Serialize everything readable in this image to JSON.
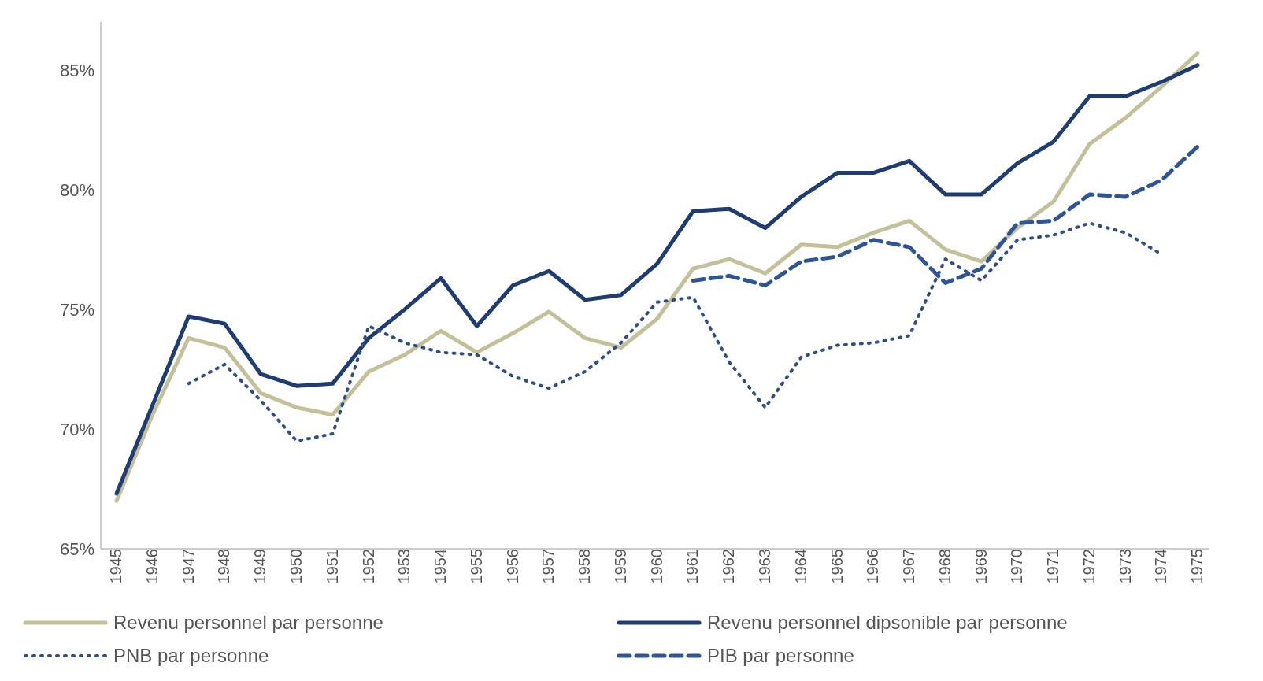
{
  "chart_data": {
    "type": "line",
    "categories": [
      "1945",
      "1946",
      "1947",
      "1948",
      "1949",
      "1950",
      "1951",
      "1952",
      "1953",
      "1954",
      "1955",
      "1956",
      "1957",
      "1958",
      "1959",
      "1960",
      "1961",
      "1962",
      "1963",
      "1964",
      "1965",
      "1966",
      "1967",
      "1968",
      "1969",
      "1970",
      "1971",
      "1972",
      "1973",
      "1974",
      "1975"
    ],
    "series": [
      {
        "name": "Revenu personnel par personne",
        "color": "#c4c19a",
        "line_style": "solid",
        "values": [
          67.0,
          70.6,
          73.8,
          73.4,
          71.5,
          70.9,
          70.6,
          72.4,
          73.1,
          74.1,
          73.2,
          74.0,
          74.9,
          73.8,
          73.4,
          74.6,
          76.7,
          77.1,
          76.5,
          77.7,
          77.6,
          78.2,
          78.7,
          77.5,
          77.0,
          78.4,
          79.5,
          81.9,
          83.0,
          84.3,
          85.7
        ]
      },
      {
        "name": "Revenu personnel dipsonible par personne",
        "color": "#1f3c73",
        "line_style": "solid",
        "values": [
          67.3,
          71.0,
          74.7,
          74.4,
          72.3,
          71.8,
          71.9,
          73.8,
          75.0,
          76.3,
          74.3,
          76.0,
          76.6,
          75.4,
          75.6,
          76.9,
          79.1,
          79.2,
          78.4,
          79.7,
          80.7,
          80.7,
          81.2,
          79.8,
          79.8,
          81.1,
          82.0,
          83.9,
          83.9,
          84.5,
          85.2
        ]
      },
      {
        "name": "PNB par personne",
        "color": "#2f4f85",
        "line_style": "dotted",
        "values": [
          null,
          null,
          71.9,
          72.7,
          71.2,
          69.5,
          69.8,
          74.3,
          73.6,
          73.2,
          73.1,
          72.2,
          71.7,
          72.4,
          73.6,
          75.3,
          75.5,
          72.8,
          70.9,
          73.0,
          73.5,
          73.6,
          73.9,
          77.1,
          76.2,
          77.9,
          78.1,
          78.6,
          78.2,
          77.3,
          null
        ]
      },
      {
        "name": "PIB par personne",
        "color": "#2f5597",
        "line_style": "dashed",
        "values": [
          null,
          null,
          null,
          null,
          null,
          null,
          null,
          null,
          null,
          null,
          null,
          null,
          null,
          null,
          null,
          null,
          76.2,
          76.4,
          76.0,
          77.0,
          77.2,
          77.9,
          77.6,
          76.1,
          76.7,
          78.6,
          78.7,
          79.8,
          79.7,
          80.4,
          81.8
        ]
      }
    ],
    "ylim": [
      65,
      87
    ],
    "yticks": [
      {
        "value": 65,
        "label": "65%"
      },
      {
        "value": 70,
        "label": "70%"
      },
      {
        "value": 75,
        "label": "75%"
      },
      {
        "value": 80,
        "label": "80%"
      },
      {
        "value": 85,
        "label": "85%"
      }
    ],
    "grid": false,
    "legend": "bottom",
    "marker": "none"
  }
}
